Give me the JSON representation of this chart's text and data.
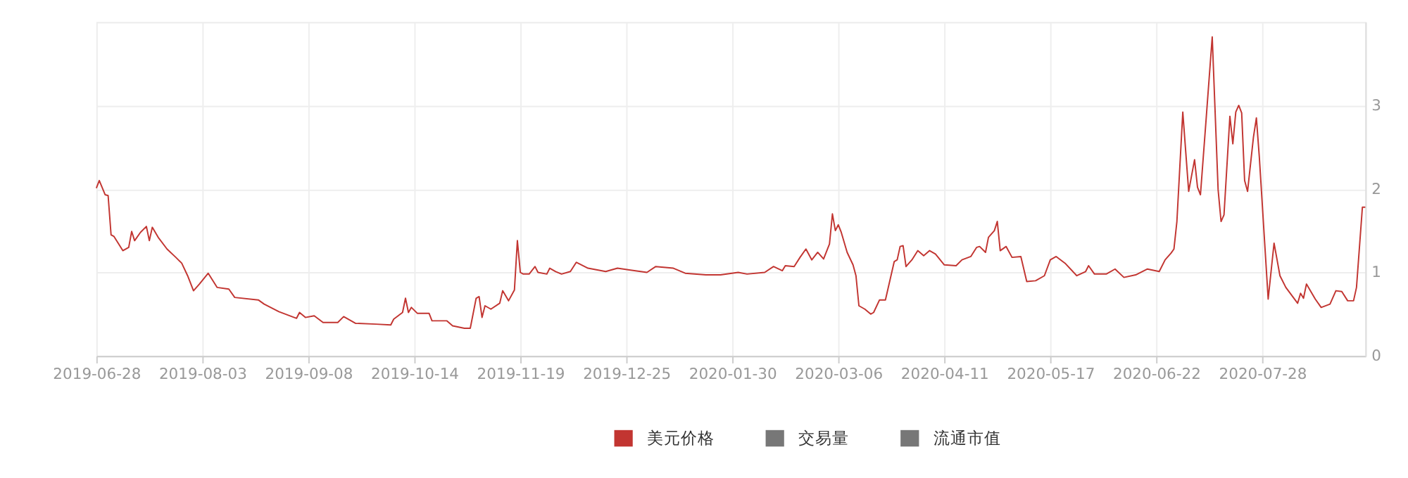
{
  "chart_data": {
    "type": "line",
    "legend": "bottom",
    "grid": true,
    "marker": "none",
    "line_style": "solid",
    "xlim": [
      "2019-06-28",
      "2020-09-01"
    ],
    "xticks": [
      "2019-06-28",
      "2019-08-03",
      "2019-09-08",
      "2019-10-14",
      "2019-11-19",
      "2019-12-25",
      "2020-01-30",
      "2020-03-06",
      "2020-04-11",
      "2020-05-17",
      "2020-06-22",
      "2020-07-28"
    ],
    "ylim": [
      0,
      4
    ],
    "yticks": [
      0,
      1,
      2,
      3,
      {
        "value": 4,
        "label": null
      }
    ],
    "x": [
      "2019-06-28",
      "2019-06-29",
      "2019-07-01",
      "2019-07-02",
      "2019-07-03",
      "2019-07-04",
      "2019-07-07",
      "2019-07-09",
      "2019-07-10",
      "2019-07-11",
      "2019-07-13",
      "2019-07-15",
      "2019-07-16",
      "2019-07-17",
      "2019-07-19",
      "2019-07-22",
      "2019-07-25",
      "2019-07-27",
      "2019-07-29",
      "2019-07-31",
      "2019-08-02",
      "2019-08-05",
      "2019-08-08",
      "2019-08-12",
      "2019-08-14",
      "2019-08-22",
      "2019-08-24",
      "2019-08-29",
      "2019-09-04",
      "2019-09-05",
      "2019-09-07",
      "2019-09-10",
      "2019-09-13",
      "2019-09-18",
      "2019-09-20",
      "2019-09-24",
      "2019-10-01",
      "2019-10-06",
      "2019-10-07",
      "2019-10-10",
      "2019-10-11",
      "2019-10-12",
      "2019-10-13",
      "2019-10-15",
      "2019-10-19",
      "2019-10-20",
      "2019-10-25",
      "2019-10-27",
      "2019-10-31",
      "2019-11-02",
      "2019-11-04",
      "2019-11-05",
      "2019-11-06",
      "2019-11-07",
      "2019-11-09",
      "2019-11-12",
      "2019-11-13",
      "2019-11-15",
      "2019-11-17",
      "2019-11-18",
      "2019-11-19",
      "2019-11-20",
      "2019-11-22",
      "2019-11-24",
      "2019-11-25",
      "2019-11-28",
      "2019-11-29",
      "2019-12-01",
      "2019-12-03",
      "2019-12-06",
      "2019-12-08",
      "2019-12-12",
      "2019-12-18",
      "2019-12-22",
      "2019-12-26",
      "2020-01-01",
      "2020-01-04",
      "2020-01-10",
      "2020-01-14",
      "2020-01-21",
      "2020-01-26",
      "2020-02-01",
      "2020-02-04",
      "2020-02-10",
      "2020-02-13",
      "2020-02-16",
      "2020-02-17",
      "2020-02-20",
      "2020-02-22",
      "2020-02-24",
      "2020-02-26",
      "2020-02-28",
      "2020-03-01",
      "2020-03-03",
      "2020-03-04",
      "2020-03-05",
      "2020-03-06",
      "2020-03-07",
      "2020-03-09",
      "2020-03-11",
      "2020-03-12",
      "2020-03-13",
      "2020-03-15",
      "2020-03-17",
      "2020-03-18",
      "2020-03-20",
      "2020-03-22",
      "2020-03-25",
      "2020-03-26",
      "2020-03-27",
      "2020-03-28",
      "2020-03-29",
      "2020-03-31",
      "2020-04-02",
      "2020-04-04",
      "2020-04-06",
      "2020-04-08",
      "2020-04-11",
      "2020-04-15",
      "2020-04-17",
      "2020-04-20",
      "2020-04-22",
      "2020-04-23",
      "2020-04-25",
      "2020-04-26",
      "2020-04-28",
      "2020-04-29",
      "2020-04-30",
      "2020-05-02",
      "2020-05-04",
      "2020-05-07",
      "2020-05-08",
      "2020-05-09",
      "2020-05-12",
      "2020-05-15",
      "2020-05-17",
      "2020-05-19",
      "2020-05-22",
      "2020-05-26",
      "2020-05-29",
      "2020-05-30",
      "2020-06-01",
      "2020-06-05",
      "2020-06-08",
      "2020-06-11",
      "2020-06-15",
      "2020-06-19",
      "2020-06-23",
      "2020-06-25",
      "2020-06-27",
      "2020-06-28",
      "2020-06-29",
      "2020-07-01",
      "2020-07-03",
      "2020-07-05",
      "2020-07-06",
      "2020-07-07",
      "2020-07-09",
      "2020-07-11",
      "2020-07-13",
      "2020-07-14",
      "2020-07-15",
      "2020-07-17",
      "2020-07-18",
      "2020-07-19",
      "2020-07-20",
      "2020-07-21",
      "2020-07-22",
      "2020-07-23",
      "2020-07-25",
      "2020-07-26",
      "2020-07-27",
      "2020-07-30",
      "2020-08-01",
      "2020-08-03",
      "2020-08-05",
      "2020-08-09",
      "2020-08-10",
      "2020-08-11",
      "2020-08-12",
      "2020-08-15",
      "2020-08-17",
      "2020-08-20",
      "2020-08-22",
      "2020-08-24",
      "2020-08-26",
      "2020-08-28",
      "2020-08-29",
      "2020-08-31",
      "2020-09-01"
    ],
    "series": [
      {
        "name": "美元价格",
        "color": "#c23531",
        "values": [
          2.01,
          2.1,
          1.93,
          1.92,
          1.45,
          1.43,
          1.26,
          1.3,
          1.49,
          1.38,
          1.48,
          1.55,
          1.38,
          1.54,
          1.42,
          1.28,
          1.18,
          1.11,
          0.96,
          0.78,
          0.86,
          0.99,
          0.82,
          0.8,
          0.7,
          0.67,
          0.62,
          0.53,
          0.45,
          0.52,
          0.46,
          0.48,
          0.4,
          0.4,
          0.47,
          0.39,
          0.38,
          0.37,
          0.44,
          0.52,
          0.69,
          0.52,
          0.58,
          0.51,
          0.51,
          0.42,
          0.42,
          0.36,
          0.33,
          0.33,
          0.69,
          0.71,
          0.46,
          0.6,
          0.56,
          0.63,
          0.78,
          0.66,
          0.79,
          1.38,
          1.0,
          0.98,
          0.98,
          1.07,
          1.0,
          0.98,
          1.05,
          1.01,
          0.98,
          1.01,
          1.12,
          1.05,
          1.01,
          1.05,
          1.03,
          1.0,
          1.07,
          1.05,
          0.99,
          0.97,
          0.97,
          1.0,
          0.98,
          1.0,
          1.07,
          1.02,
          1.08,
          1.07,
          1.18,
          1.28,
          1.15,
          1.24,
          1.16,
          1.34,
          1.7,
          1.5,
          1.57,
          1.48,
          1.24,
          1.09,
          0.96,
          0.6,
          0.56,
          0.5,
          0.52,
          0.67,
          0.67,
          1.13,
          1.15,
          1.31,
          1.32,
          1.07,
          1.15,
          1.26,
          1.2,
          1.26,
          1.22,
          1.09,
          1.08,
          1.15,
          1.19,
          1.3,
          1.31,
          1.24,
          1.42,
          1.5,
          1.61,
          1.26,
          1.31,
          1.18,
          1.19,
          1.04,
          0.89,
          0.9,
          0.96,
          1.15,
          1.19,
          1.11,
          0.96,
          1.01,
          1.08,
          0.98,
          0.98,
          1.04,
          0.94,
          0.97,
          1.04,
          1.01,
          1.15,
          1.23,
          1.28,
          1.61,
          2.92,
          1.97,
          2.35,
          2.02,
          1.93,
          2.87,
          3.82,
          1.99,
          1.61,
          1.69,
          2.87,
          2.54,
          2.92,
          3.0,
          2.91,
          2.1,
          1.97,
          2.62,
          2.85,
          2.38,
          0.68,
          1.35,
          0.96,
          0.82,
          0.63,
          0.75,
          0.69,
          0.86,
          0.68,
          0.58,
          0.62,
          0.78,
          0.77,
          0.66,
          0.66,
          0.82,
          1.78,
          1.78
        ]
      },
      {
        "name": "交易量",
        "color": "#777777",
        "values": [
          null,
          null,
          null,
          null,
          null,
          null,
          null,
          null,
          null,
          null,
          null,
          null,
          null,
          null,
          null,
          null,
          null,
          null,
          null,
          null,
          null,
          null,
          null,
          null,
          null,
          null,
          null,
          null,
          null,
          null,
          null,
          null,
          null,
          null,
          null,
          null,
          null,
          null,
          null,
          null,
          null,
          null,
          null,
          null,
          null,
          null,
          null,
          null,
          null,
          null,
          null,
          null,
          null,
          null,
          null,
          null,
          null,
          null,
          null,
          null,
          null,
          null,
          null,
          null,
          null,
          null,
          null,
          null,
          null,
          null,
          null,
          null,
          null,
          null,
          null,
          null,
          null,
          null,
          null,
          null,
          null,
          null,
          null,
          null,
          null,
          null,
          null,
          null,
          null,
          null,
          null,
          null,
          null,
          null,
          null,
          null,
          null,
          null,
          null,
          null,
          null,
          null,
          null,
          null,
          null,
          null,
          null,
          null,
          null,
          null,
          null,
          null,
          null,
          null,
          null,
          null,
          null,
          null,
          null,
          null,
          null,
          null,
          null,
          null,
          null,
          null,
          null,
          null,
          null,
          null,
          null,
          null,
          null,
          null,
          null,
          null,
          null,
          null,
          null,
          null,
          null,
          null,
          null,
          null,
          null,
          null,
          null,
          null,
          null,
          null,
          null,
          null,
          null,
          null,
          null,
          null,
          null,
          null,
          null,
          null,
          null,
          null,
          null,
          null,
          null,
          null,
          null,
          null,
          null,
          null,
          null,
          null,
          null,
          null,
          null,
          null,
          null,
          null,
          null,
          null,
          null,
          null,
          null,
          null,
          null,
          null,
          null,
          null,
          null,
          null
        ]
      },
      {
        "name": "流通市值",
        "color": "#777777",
        "values": [
          null,
          null,
          null,
          null,
          null,
          null,
          null,
          null,
          null,
          null,
          null,
          null,
          null,
          null,
          null,
          null,
          null,
          null,
          null,
          null,
          null,
          null,
          null,
          null,
          null,
          null,
          null,
          null,
          null,
          null,
          null,
          null,
          null,
          null,
          null,
          null,
          null,
          null,
          null,
          null,
          null,
          null,
          null,
          null,
          null,
          null,
          null,
          null,
          null,
          null,
          null,
          null,
          null,
          null,
          null,
          null,
          null,
          null,
          null,
          null,
          null,
          null,
          null,
          null,
          null,
          null,
          null,
          null,
          null,
          null,
          null,
          null,
          null,
          null,
          null,
          null,
          null,
          null,
          null,
          null,
          null,
          null,
          null,
          null,
          null,
          null,
          null,
          null,
          null,
          null,
          null,
          null,
          null,
          null,
          null,
          null,
          null,
          null,
          null,
          null,
          null,
          null,
          null,
          null,
          null,
          null,
          null,
          null,
          null,
          null,
          null,
          null,
          null,
          null,
          null,
          null,
          null,
          null,
          null,
          null,
          null,
          null,
          null,
          null,
          null,
          null,
          null,
          null,
          null,
          null,
          null,
          null,
          null,
          null,
          null,
          null,
          null,
          null,
          null,
          null,
          null,
          null,
          null,
          null,
          null,
          null,
          null,
          null,
          null,
          null,
          null,
          null,
          null,
          null,
          null,
          null,
          null,
          null,
          null,
          null,
          null,
          null,
          null,
          null,
          null,
          null,
          null,
          null,
          null,
          null,
          null,
          null,
          null,
          null,
          null,
          null,
          null,
          null,
          null,
          null,
          null,
          null,
          null,
          null,
          null,
          null,
          null,
          null,
          null,
          null
        ]
      }
    ]
  }
}
